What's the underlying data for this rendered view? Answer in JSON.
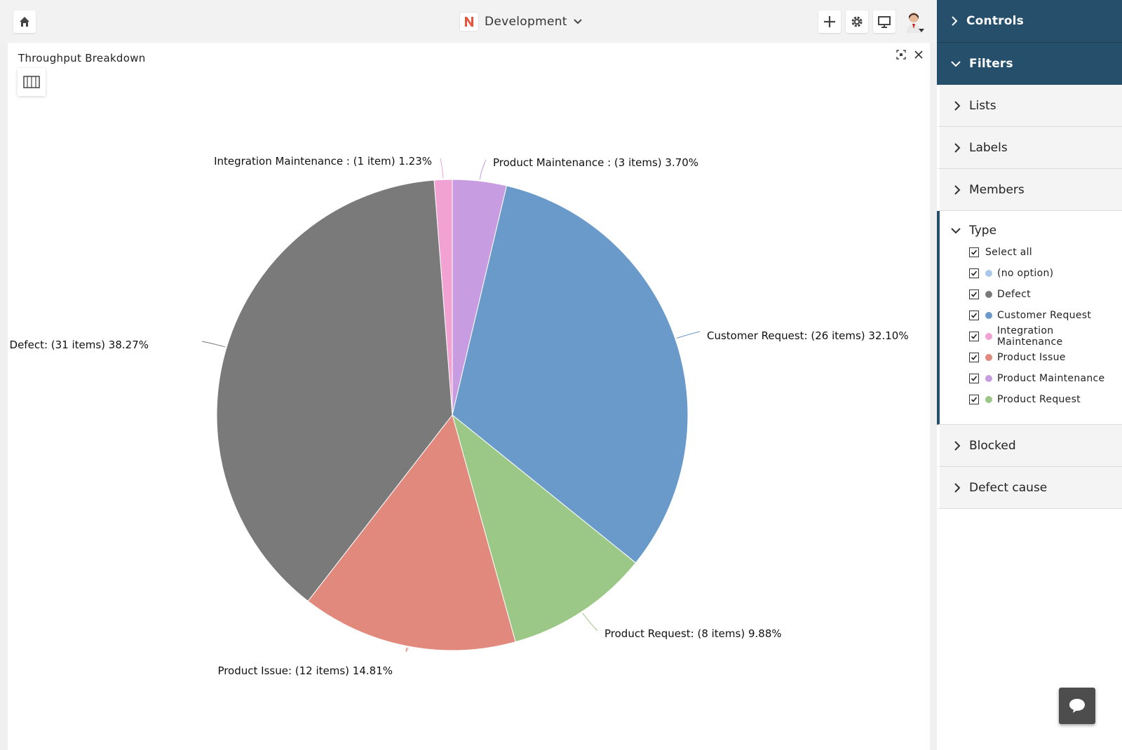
{
  "topbar": {
    "project_name": "Development"
  },
  "panel": {
    "title": "Throughput Breakdown"
  },
  "sidebar": {
    "controls_label": "Controls",
    "filters_label": "Filters",
    "sections": [
      "Lists",
      "Labels",
      "Members"
    ],
    "type": {
      "label": "Type",
      "options": [
        {
          "label": "Select all",
          "color": ""
        },
        {
          "label": "(no option)",
          "color": "#a9c8ec"
        },
        {
          "label": "Defect",
          "color": "#7a7a7a"
        },
        {
          "label": "Customer Request",
          "color": "#6a9ac9"
        },
        {
          "label": "Integration Maintenance",
          "color": "#f2a1d3"
        },
        {
          "label": "Product Issue",
          "color": "#e0897c"
        },
        {
          "label": "Product Maintenance",
          "color": "#c79ce1"
        },
        {
          "label": "Product Request",
          "color": "#9bc886"
        }
      ]
    },
    "bottom_sections": [
      "Blocked",
      "Defect cause"
    ]
  },
  "chart_data": {
    "type": "pie",
    "slices": [
      {
        "name": "Integration Maintenance",
        "items": 1,
        "percent": 1.23,
        "color": "#f2a1d3",
        "label": "Integration Maintenance : (1 item) 1.23%"
      },
      {
        "name": "Product Maintenance",
        "items": 3,
        "percent": 3.7,
        "color": "#c79ce1",
        "label": "Product Maintenance : (3 items) 3.70%"
      },
      {
        "name": "Customer Request",
        "items": 26,
        "percent": 32.1,
        "color": "#6a9ac9",
        "label": "Customer Request: (26 items) 32.10%"
      },
      {
        "name": "Product Request",
        "items": 8,
        "percent": 9.88,
        "color": "#9bc886",
        "label": "Product Request: (8 items) 9.88%"
      },
      {
        "name": "Product Issue",
        "items": 12,
        "percent": 14.81,
        "color": "#e0897c",
        "label": "Product Issue: (12 items) 14.81%"
      },
      {
        "name": "Defect",
        "items": 31,
        "percent": 38.27,
        "color": "#7a7a7a",
        "label": "Defect: (31 items) 38.27%"
      }
    ]
  }
}
